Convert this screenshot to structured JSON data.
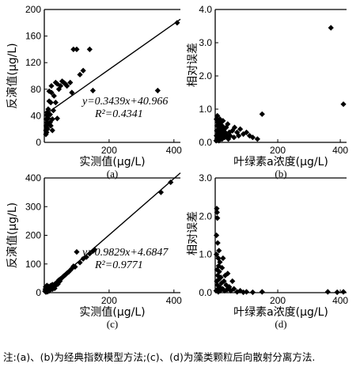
{
  "figure_note": "注:(a)、(b)为经典指数模型方法;(c)、(d)为藻类颗粒后向散射分离方法.",
  "chart_data": [
    {
      "id": "a",
      "type": "scatter",
      "panel_label": "(a)",
      "xlabel": "实测值(μg/L)",
      "ylabel": "反演值(μg/L)",
      "xlim": [
        0,
        420
      ],
      "ylim": [
        0,
        200
      ],
      "xticks": [
        200,
        400
      ],
      "yticks": [
        0,
        40,
        80,
        120,
        160,
        200
      ],
      "marker": "diamond",
      "fit_line": {
        "slope": 0.3439,
        "intercept": 40.966,
        "x_range": [
          0,
          420
        ]
      },
      "annotation": {
        "equation": "y=0.3439x+40.966",
        "r2": "R²=0.4341"
      },
      "points": [
        [
          5,
          12
        ],
        [
          5,
          18
        ],
        [
          6,
          25
        ],
        [
          6,
          35
        ],
        [
          7,
          15
        ],
        [
          8,
          22
        ],
        [
          8,
          30
        ],
        [
          8,
          45
        ],
        [
          9,
          40
        ],
        [
          10,
          20
        ],
        [
          10,
          28
        ],
        [
          12,
          36
        ],
        [
          12,
          50
        ],
        [
          15,
          62
        ],
        [
          15,
          77
        ],
        [
          18,
          30
        ],
        [
          18,
          42
        ],
        [
          20,
          25
        ],
        [
          20,
          60
        ],
        [
          22,
          75
        ],
        [
          22,
          85
        ],
        [
          25,
          18
        ],
        [
          25,
          35
        ],
        [
          28,
          48
        ],
        [
          30,
          70
        ],
        [
          35,
          90
        ],
        [
          35,
          60
        ],
        [
          40,
          88
        ],
        [
          40,
          36
        ],
        [
          45,
          80
        ],
        [
          50,
          85
        ],
        [
          55,
          92
        ],
        [
          60,
          90
        ],
        [
          65,
          88
        ],
        [
          70,
          85
        ],
        [
          80,
          90
        ],
        [
          85,
          75
        ],
        [
          90,
          140
        ],
        [
          100,
          140
        ],
        [
          110,
          102
        ],
        [
          120,
          108
        ],
        [
          140,
          140
        ],
        [
          150,
          78
        ],
        [
          350,
          78
        ],
        [
          410,
          180
        ]
      ]
    },
    {
      "id": "b",
      "type": "scatter",
      "panel_label": "(b)",
      "xlabel": "叶绿素a浓度(μg/L)",
      "ylabel": "相对误差",
      "xlim": [
        0,
        420
      ],
      "ylim": [
        0,
        4.0
      ],
      "xticks": [
        200,
        400
      ],
      "yticks": [
        0.0,
        1.0,
        2.0,
        3.0,
        4.0
      ],
      "marker": "diamond",
      "points": [
        [
          3,
          0.05
        ],
        [
          4,
          0.2
        ],
        [
          4,
          0.7
        ],
        [
          5,
          0.35
        ],
        [
          6,
          0.5
        ],
        [
          6,
          0.1
        ],
        [
          7,
          0.8
        ],
        [
          8,
          0.25
        ],
        [
          8,
          0.6
        ],
        [
          10,
          0.4
        ],
        [
          10,
          0.15
        ],
        [
          12,
          0.55
        ],
        [
          12,
          0.05
        ],
        [
          14,
          0.3
        ],
        [
          15,
          0.7
        ],
        [
          16,
          0.45
        ],
        [
          18,
          0.2
        ],
        [
          18,
          0.6
        ],
        [
          20,
          0.35
        ],
        [
          22,
          0.5
        ],
        [
          22,
          0.1
        ],
        [
          25,
          0.25
        ],
        [
          25,
          0.65
        ],
        [
          28,
          0.4
        ],
        [
          30,
          0.15
        ],
        [
          32,
          0.3
        ],
        [
          35,
          0.45
        ],
        [
          38,
          0.2
        ],
        [
          40,
          0.55
        ],
        [
          42,
          0.1
        ],
        [
          45,
          0.3
        ],
        [
          48,
          0.2
        ],
        [
          55,
          0.35
        ],
        [
          60,
          0.15
        ],
        [
          62,
          0.45
        ],
        [
          70,
          0.3
        ],
        [
          75,
          0.2
        ],
        [
          80,
          0.4
        ],
        [
          90,
          0.25
        ],
        [
          100,
          0.3
        ],
        [
          110,
          0.2
        ],
        [
          120,
          0.15
        ],
        [
          135,
          0.1
        ],
        [
          150,
          0.85
        ],
        [
          370,
          3.45
        ],
        [
          410,
          1.15
        ]
      ]
    },
    {
      "id": "c",
      "type": "scatter",
      "panel_label": "(c)",
      "xlabel": "实测值(μg/L)",
      "ylabel": "反演值(μg/L)",
      "xlim": [
        0,
        420
      ],
      "ylim": [
        0,
        400
      ],
      "xticks": [
        200,
        400
      ],
      "yticks": [
        0,
        100,
        200,
        300,
        400
      ],
      "marker": "diamond",
      "fit_line": {
        "slope": 0.9829,
        "intercept": 4.6847,
        "x_range": [
          0,
          420
        ]
      },
      "annotation": {
        "equation": "y=0.9829x+4.6847",
        "r2": "R²=0.9771"
      },
      "points": [
        [
          2,
          5
        ],
        [
          3,
          12
        ],
        [
          4,
          20
        ],
        [
          5,
          2
        ],
        [
          6,
          8
        ],
        [
          7,
          15
        ],
        [
          8,
          25
        ],
        [
          9,
          10
        ],
        [
          10,
          18
        ],
        [
          10,
          3
        ],
        [
          12,
          22
        ],
        [
          12,
          8
        ],
        [
          14,
          14
        ],
        [
          15,
          6
        ],
        [
          16,
          20
        ],
        [
          18,
          12
        ],
        [
          20,
          15
        ],
        [
          20,
          25
        ],
        [
          22,
          18
        ],
        [
          25,
          12
        ],
        [
          25,
          28
        ],
        [
          28,
          20
        ],
        [
          30,
          24
        ],
        [
          32,
          15
        ],
        [
          35,
          32
        ],
        [
          38,
          28
        ],
        [
          40,
          36
        ],
        [
          42,
          30
        ],
        [
          45,
          44
        ],
        [
          48,
          40
        ],
        [
          50,
          48
        ],
        [
          55,
          52
        ],
        [
          60,
          58
        ],
        [
          65,
          62
        ],
        [
          70,
          68
        ],
        [
          75,
          72
        ],
        [
          80,
          78
        ],
        [
          85,
          84
        ],
        [
          90,
          92
        ],
        [
          95,
          90
        ],
        [
          100,
          142
        ],
        [
          110,
          105
        ],
        [
          120,
          118
        ],
        [
          130,
          124
        ],
        [
          140,
          136
        ],
        [
          150,
          145
        ],
        [
          155,
          150
        ],
        [
          360,
          350
        ],
        [
          390,
          385
        ]
      ]
    },
    {
      "id": "d",
      "type": "scatter",
      "panel_label": "(d)",
      "xlabel": "叶绿素a浓度(μg/L)",
      "ylabel": "相对误差",
      "xlim": [
        0,
        420
      ],
      "ylim": [
        0,
        3.0
      ],
      "xticks": [
        200,
        400
      ],
      "yticks": [
        0.0,
        1.0,
        2.0,
        3.0
      ],
      "marker": "diamond",
      "points": [
        [
          3,
          0.05
        ],
        [
          4,
          1.5
        ],
        [
          4,
          1.0
        ],
        [
          5,
          2.2
        ],
        [
          5,
          0.3
        ],
        [
          6,
          2.1
        ],
        [
          6,
          0.6
        ],
        [
          7,
          1.95
        ],
        [
          7,
          0.2
        ],
        [
          8,
          1.3
        ],
        [
          8,
          0.45
        ],
        [
          9,
          0.1
        ],
        [
          10,
          0.9
        ],
        [
          10,
          0.02
        ],
        [
          11,
          0.7
        ],
        [
          12,
          1.1
        ],
        [
          12,
          0.35
        ],
        [
          13,
          0.55
        ],
        [
          14,
          0.15
        ],
        [
          15,
          0.8
        ],
        [
          16,
          0.05
        ],
        [
          18,
          0.4
        ],
        [
          20,
          0.25
        ],
        [
          22,
          0.65
        ],
        [
          24,
          0.1
        ],
        [
          25,
          0.9
        ],
        [
          28,
          0.3
        ],
        [
          30,
          0.05
        ],
        [
          32,
          0.45
        ],
        [
          35,
          0.2
        ],
        [
          38,
          0.08
        ],
        [
          40,
          0.5
        ],
        [
          45,
          0.15
        ],
        [
          50,
          0.05
        ],
        [
          55,
          0.3
        ],
        [
          60,
          0.1
        ],
        [
          70,
          0.02
        ],
        [
          80,
          0.05
        ],
        [
          90,
          0.01
        ],
        [
          100,
          0.02
        ],
        [
          120,
          0.01
        ],
        [
          150,
          0.02
        ],
        [
          360,
          0.02
        ],
        [
          390,
          0.01
        ],
        [
          410,
          0.02
        ]
      ]
    }
  ]
}
